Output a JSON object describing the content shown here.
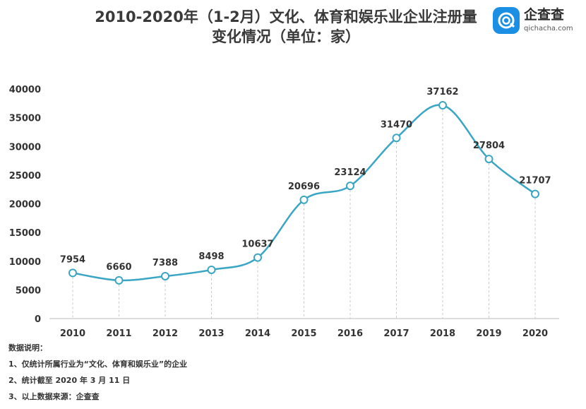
{
  "title_line1": "2010-2020年（1-2月）文化、体育和娱乐业企业注册量",
  "title_line2": "变化情况（单位：家）",
  "logo": {
    "icon": "qichacha-logo-icon",
    "name": "企查查",
    "url": "qichacha.com"
  },
  "notes": {
    "heading": "数据说明：",
    "items": [
      "1、仅统计所属行业为“文化、体育和娱乐业”的企业",
      "2、统计截至 2020 年 3 月 11 日",
      "3、以上数据来源：企查查"
    ]
  },
  "colors": {
    "line": "#3aa6c4",
    "axis": "#bbbbbb",
    "marker_fill": "#ffffff",
    "text": "#333333"
  },
  "chart_data": {
    "type": "line",
    "title": "2010-2020年（1-2月）文化、体育和娱乐业企业注册量变化情况（单位：家）",
    "xlabel": "",
    "ylabel": "",
    "categories": [
      "2010",
      "2011",
      "2012",
      "2013",
      "2014",
      "2015",
      "2016",
      "2017",
      "2018",
      "2019",
      "2020"
    ],
    "values": [
      7954,
      6660,
      7388,
      8498,
      10637,
      20696,
      23124,
      31470,
      37162,
      27804,
      21707
    ],
    "yticks": [
      0,
      5000,
      10000,
      15000,
      20000,
      25000,
      30000,
      35000,
      40000
    ],
    "ylim": [
      0,
      40000
    ],
    "grid": false,
    "smooth": true,
    "data_labels": true
  }
}
